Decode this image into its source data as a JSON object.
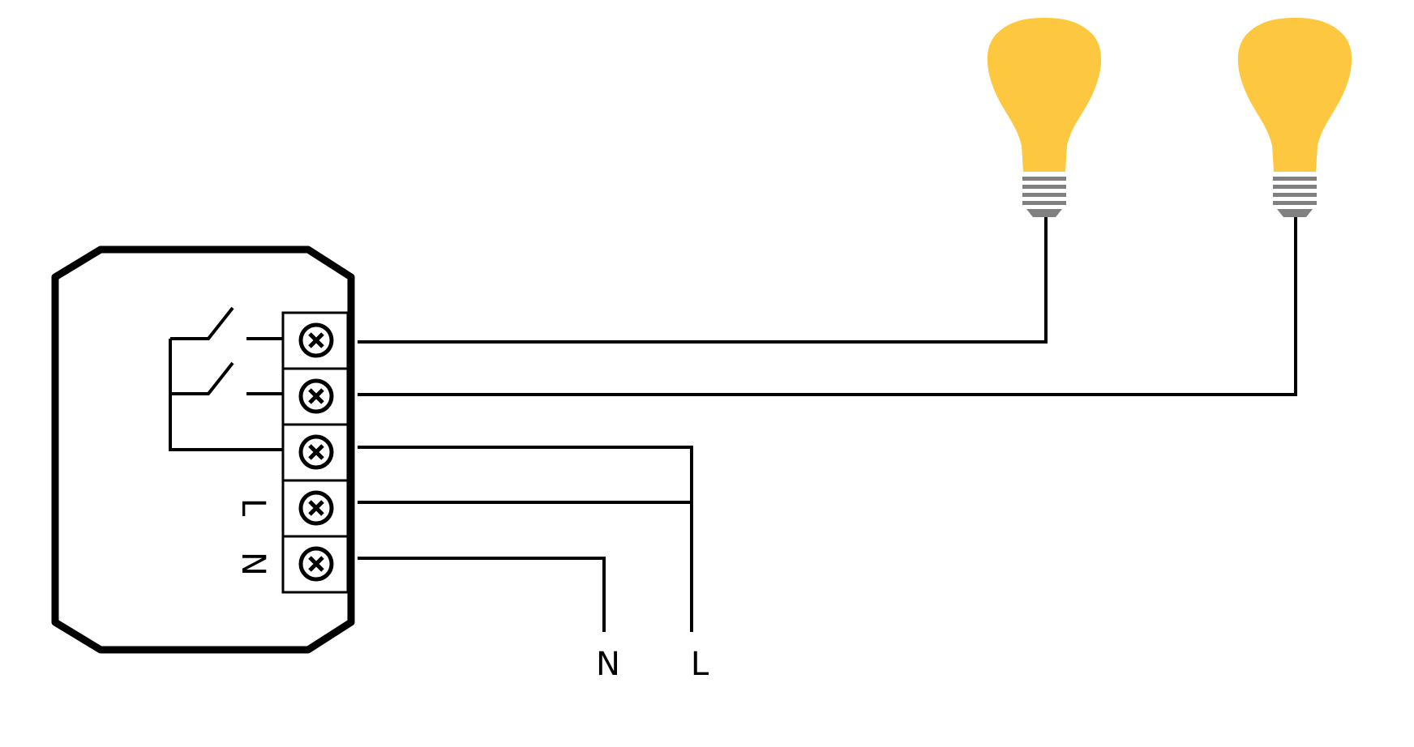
{
  "diagram": {
    "terminal_labels": {
      "live": "L",
      "neutral": "N"
    },
    "supply_labels": {
      "neutral": "N",
      "live": "L"
    },
    "colors": {
      "wire": "#000000",
      "bulb_glass": "#FDC83F",
      "bulb_base": "#808080",
      "background": "#FFFFFF"
    },
    "icons": [
      "light-bulb-icon",
      "screw-terminal-icon",
      "switch-contact-icon"
    ]
  }
}
